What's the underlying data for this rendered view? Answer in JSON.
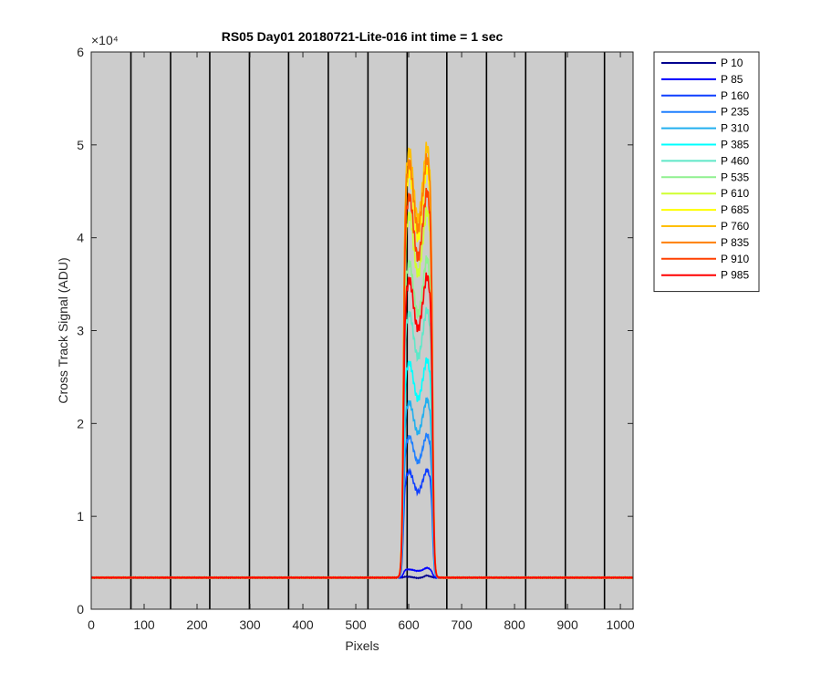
{
  "chart_data": {
    "type": "line",
    "title": "RS05 Day01 20180721-Lite-016 int time = 1 sec",
    "xlabel": "Pixels",
    "ylabel": "Cross Track Signal (ADU)",
    "y_exponent_label": "×10⁴",
    "y_multiplier": 10000,
    "xlim": [
      0,
      1024
    ],
    "ylim": [
      0,
      60000
    ],
    "x_ticks": [
      0,
      100,
      200,
      300,
      400,
      500,
      600,
      700,
      800,
      900,
      1000
    ],
    "x_tick_labels": [
      "0",
      "100",
      "200",
      "300",
      "400",
      "500",
      "600",
      "700",
      "800",
      "900",
      "1000"
    ],
    "y_ticks": [
      0,
      10000,
      20000,
      30000,
      40000,
      50000,
      60000
    ],
    "y_tick_labels": [
      "0",
      "1",
      "2",
      "3",
      "4",
      "5",
      "6"
    ],
    "plot_background": "#cccccc",
    "vertical_boundaries": [
      75,
      150,
      224,
      299,
      373,
      448,
      523,
      597,
      672,
      747,
      821,
      896,
      970
    ],
    "boundary_color": "#000000",
    "legend_position": "outside-top-right",
    "baseline": 3400,
    "peak_range": [
      590,
      645
    ],
    "series": [
      {
        "name": "P 10",
        "color": "#00008f",
        "plateau": 3500
      },
      {
        "name": "P 85",
        "color": "#0000ff",
        "plateau": 4300
      },
      {
        "name": "P 160",
        "color": "#0f3fff",
        "plateau": 14500
      },
      {
        "name": "P 235",
        "color": "#1f7fff",
        "plateau": 18200
      },
      {
        "name": "P 310",
        "color": "#20afef",
        "plateau": 21800
      },
      {
        "name": "P 385",
        "color": "#00ffff",
        "plateau": 26000
      },
      {
        "name": "P 460",
        "color": "#5fe8c8",
        "plateau": 31200
      },
      {
        "name": "P 535",
        "color": "#8ff08f",
        "plateau": 36500
      },
      {
        "name": "P 610",
        "color": "#cfff30",
        "plateau": 41500
      },
      {
        "name": "P 685",
        "color": "#ffff00",
        "plateau": 46000
      },
      {
        "name": "P 760",
        "color": "#ffbf00",
        "plateau": 48200
      },
      {
        "name": "P 835",
        "color": "#ff7f00",
        "plateau": 47000
      },
      {
        "name": "P 910",
        "color": "#ff4000",
        "plateau": 43500
      },
      {
        "name": "P 985",
        "color": "#ff0000",
        "plateau": 34700
      }
    ]
  }
}
